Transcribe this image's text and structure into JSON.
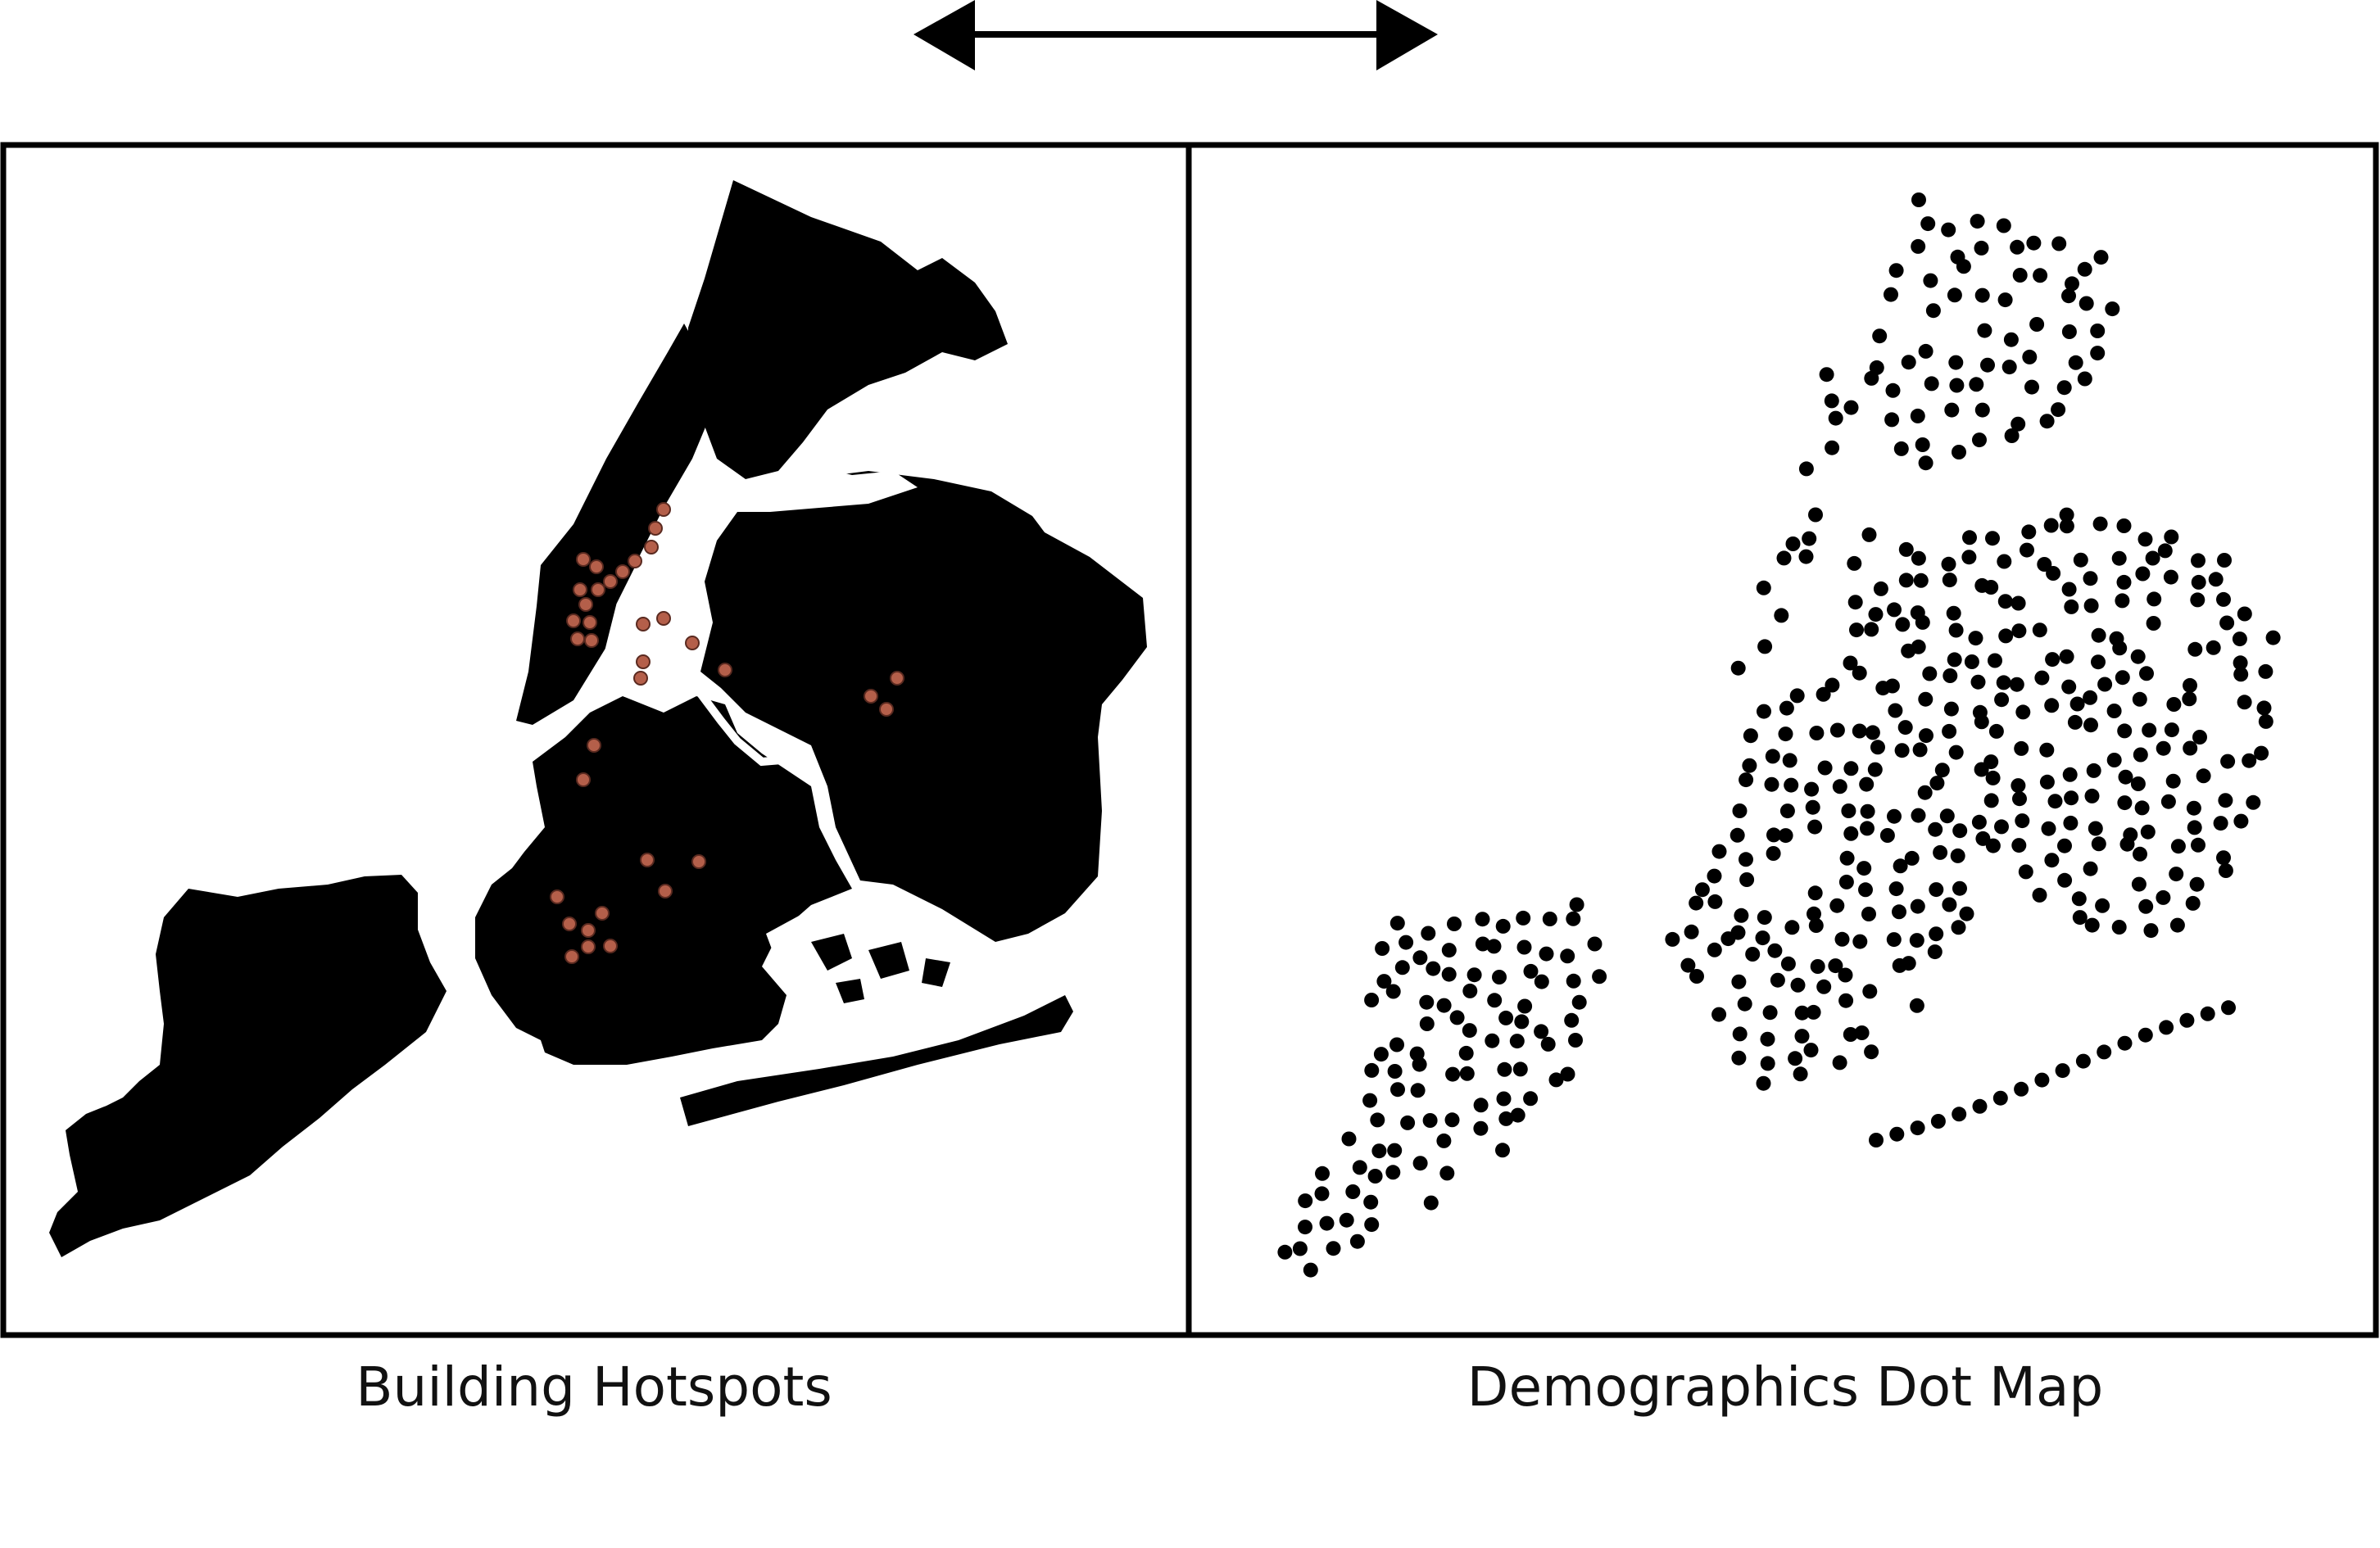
{
  "captions": {
    "left": "Building Hotspots",
    "right": "Demographics Dot Map"
  },
  "colors": {
    "land": "#000000",
    "water": "#ffffff",
    "hotspot": "#b45f4a",
    "frame": "#000000",
    "dot": "#000000"
  },
  "icons": {
    "arrow": "double-headed-arrow-icon"
  }
}
